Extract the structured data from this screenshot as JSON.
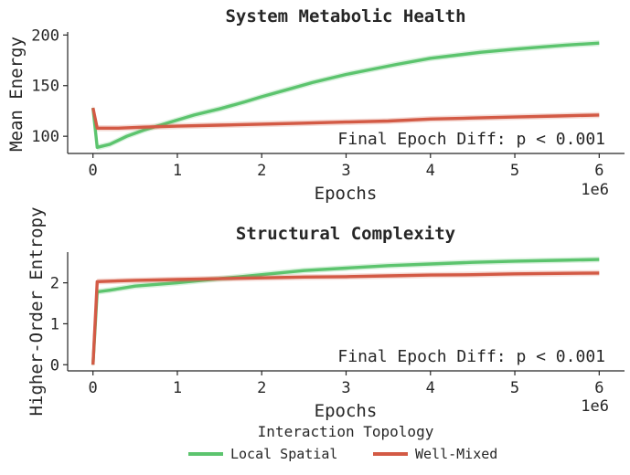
{
  "colors": {
    "local": "#5cc46e",
    "mixed": "#d35a45",
    "axis": "#262626"
  },
  "legend": {
    "title": "Interaction Topology",
    "items": [
      {
        "label": "Local Spatial",
        "color": "#5cc46e"
      },
      {
        "label": "Well-Mixed",
        "color": "#d35a45"
      }
    ],
    "placement": "bottom-center"
  },
  "chart_data": [
    {
      "type": "line",
      "title": "System Metabolic Health",
      "xlabel": "Epochs",
      "ylabel": "Mean Energy",
      "x_offset_label": "1e6",
      "xlim": [
        -0.3,
        6.3
      ],
      "ylim": [
        83,
        203
      ],
      "xticks": [
        0,
        1,
        2,
        3,
        4,
        5,
        6
      ],
      "yticks": [
        100,
        150,
        200
      ],
      "grid": false,
      "annotation": "Final Epoch Diff: p < 0.001",
      "series": [
        {
          "name": "Local Spatial",
          "x": [
            0,
            0.05,
            0.2,
            0.4,
            0.6,
            0.8,
            1.0,
            1.2,
            1.5,
            1.8,
            2.0,
            2.3,
            2.6,
            3.0,
            3.3,
            3.6,
            4.0,
            4.3,
            4.6,
            5.0,
            5.3,
            5.6,
            6.0
          ],
          "y": [
            128,
            89,
            92,
            100,
            106,
            111,
            116,
            121,
            127,
            134,
            139,
            146,
            153,
            161,
            166,
            171,
            177,
            180,
            183,
            186,
            188,
            190,
            192
          ]
        },
        {
          "name": "Well-Mixed",
          "x": [
            0,
            0.05,
            0.3,
            0.6,
            1.0,
            1.5,
            2.0,
            2.5,
            3.0,
            3.5,
            4.0,
            4.5,
            5.0,
            5.5,
            6.0
          ],
          "y": [
            128,
            108,
            108,
            109,
            110,
            111,
            112,
            113,
            114,
            115,
            117,
            118,
            119,
            120,
            121
          ]
        }
      ]
    },
    {
      "type": "line",
      "title": "Structural Complexity",
      "xlabel": "Epochs",
      "ylabel": "Higher-Order Entropy",
      "x_offset_label": "1e6",
      "xlim": [
        -0.3,
        6.3
      ],
      "ylim": [
        -0.15,
        2.75
      ],
      "xticks": [
        0,
        1,
        2,
        3,
        4,
        5,
        6
      ],
      "yticks": [
        0,
        1,
        2
      ],
      "grid": false,
      "annotation": "Final Epoch Diff: p < 0.001",
      "series": [
        {
          "name": "Local Spatial",
          "x": [
            0,
            0.05,
            0.2,
            0.5,
            1.0,
            1.5,
            2.0,
            2.5,
            3.0,
            3.5,
            4.0,
            4.5,
            5.0,
            5.5,
            6.0
          ],
          "y": [
            0,
            1.78,
            1.82,
            1.92,
            2.0,
            2.1,
            2.2,
            2.3,
            2.36,
            2.42,
            2.46,
            2.5,
            2.53,
            2.55,
            2.57
          ]
        },
        {
          "name": "Well-Mixed",
          "x": [
            0,
            0.05,
            0.5,
            1.0,
            1.5,
            2.0,
            2.5,
            3.0,
            3.5,
            4.0,
            4.5,
            5.0,
            5.5,
            6.0
          ],
          "y": [
            0,
            2.03,
            2.06,
            2.08,
            2.1,
            2.12,
            2.14,
            2.15,
            2.17,
            2.19,
            2.2,
            2.22,
            2.23,
            2.24
          ]
        }
      ]
    }
  ]
}
